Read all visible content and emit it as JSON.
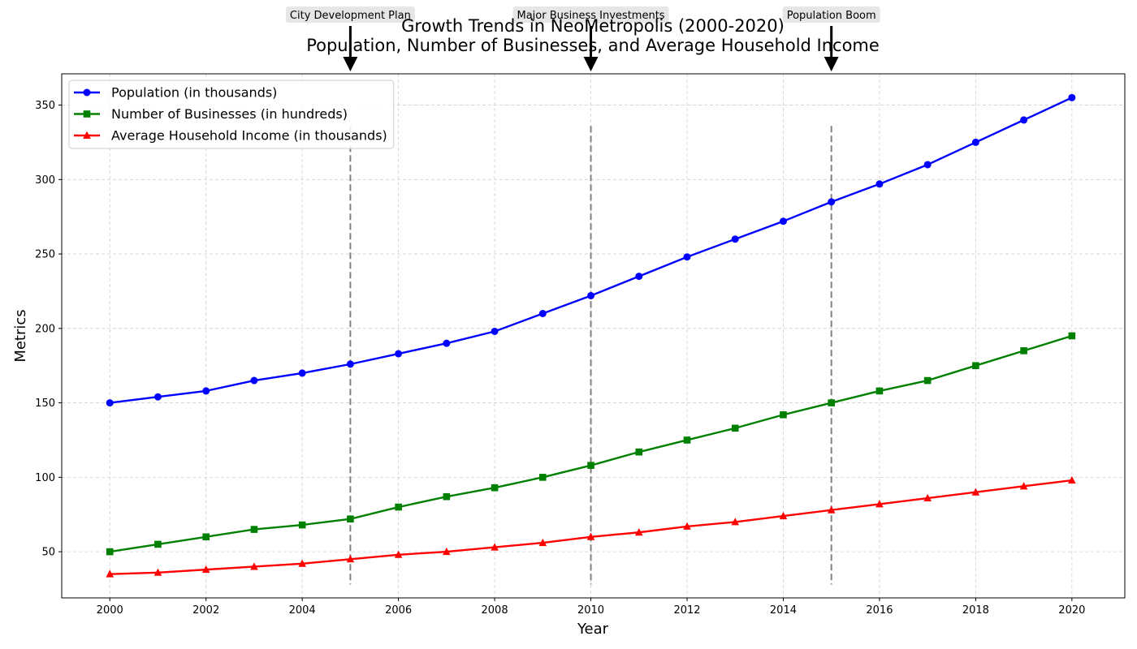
{
  "chart_data": {
    "type": "line",
    "title": "Growth Trends in NeoMetropolis (2000-2020)",
    "subtitle": "Population, Number of Businesses, and Average Household Income",
    "xlabel": "Year",
    "ylabel": "Metrics",
    "xlim": [
      1999,
      2021.1
    ],
    "ylim": [
      19,
      371
    ],
    "x_ticks": [
      2000,
      2002,
      2004,
      2006,
      2008,
      2010,
      2012,
      2014,
      2016,
      2018,
      2020
    ],
    "y_ticks": [
      50,
      100,
      150,
      200,
      250,
      300,
      350
    ],
    "grid": true,
    "legend_position": "top-left",
    "x": [
      2000,
      2001,
      2002,
      2003,
      2004,
      2005,
      2006,
      2007,
      2008,
      2009,
      2010,
      2011,
      2012,
      2013,
      2014,
      2015,
      2016,
      2017,
      2018,
      2019,
      2020
    ],
    "series": [
      {
        "name": "Population (in thousands)",
        "color": "#0000ff",
        "marker": "circle",
        "values": [
          150,
          154,
          158,
          165,
          170,
          176,
          183,
          190,
          198,
          210,
          222,
          235,
          248,
          260,
          272,
          285,
          297,
          310,
          325,
          340,
          355
        ]
      },
      {
        "name": "Number of Businesses (in hundreds)",
        "color": "#008000",
        "marker": "square",
        "values": [
          50,
          55,
          60,
          65,
          68,
          72,
          80,
          87,
          93,
          100,
          108,
          117,
          125,
          133,
          142,
          150,
          158,
          165,
          175,
          185,
          195
        ]
      },
      {
        "name": "Average Household Income (in thousands)",
        "color": "#ff0000",
        "marker": "triangle",
        "values": [
          35,
          36,
          38,
          40,
          42,
          45,
          48,
          50,
          53,
          56,
          60,
          63,
          67,
          70,
          74,
          78,
          82,
          86,
          90,
          94,
          98
        ]
      }
    ],
    "annotations": [
      {
        "x": 2005,
        "text": "City Development Plan"
      },
      {
        "x": 2010,
        "text": "Major Business Investments"
      },
      {
        "x": 2015,
        "text": "Population Boom"
      }
    ]
  }
}
